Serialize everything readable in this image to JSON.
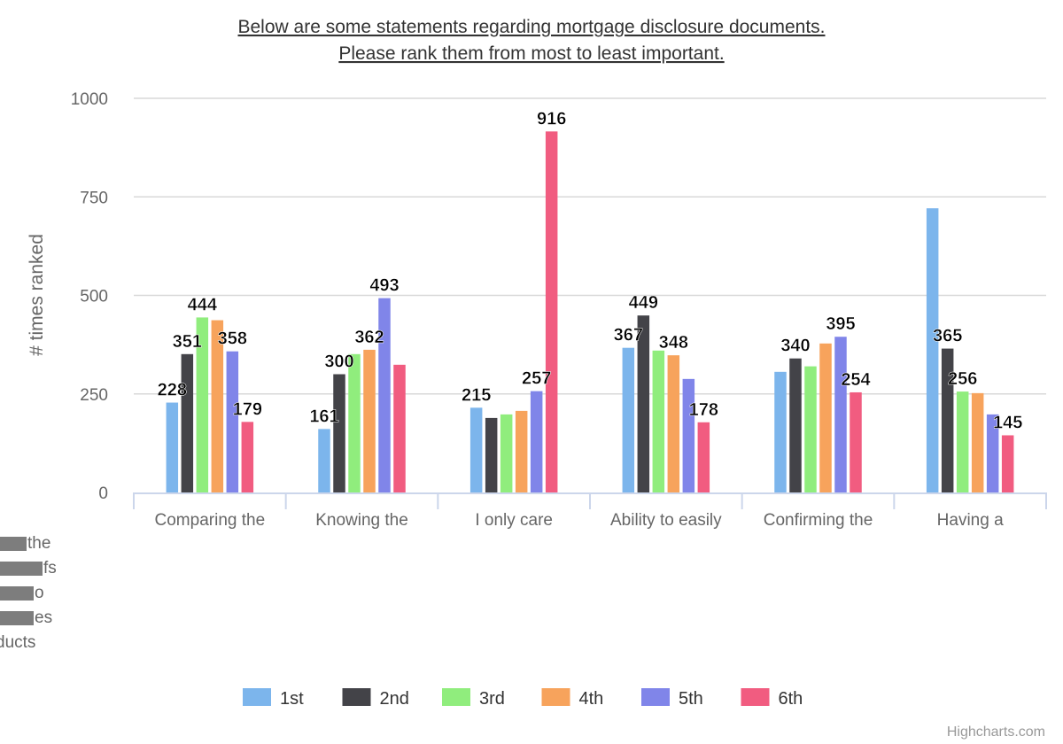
{
  "chart_data": {
    "type": "bar",
    "title_lines": [
      "Below are some statements regarding mortgage disclosure documents.",
      "Please rank them from most to least important."
    ],
    "ylabel": "# times ranked",
    "ylim": [
      0,
      1000
    ],
    "yticks": [
      0,
      250,
      500,
      750,
      1000
    ],
    "grid": true,
    "categories": [
      "Comparing the",
      "Knowing the",
      "I only care",
      "Ability to easily",
      "Confirming the",
      "Having a"
    ],
    "series": [
      {
        "name": "1st",
        "color": "#7cb5ec",
        "values": [
          228,
          161,
          215,
          367,
          306,
          721
        ],
        "labels": [
          "228",
          "161",
          "215",
          "367",
          "",
          ""
        ]
      },
      {
        "name": "2nd",
        "color": "#434348",
        "values": [
          351,
          300,
          189,
          449,
          340,
          365
        ],
        "labels": [
          "351",
          "300",
          "",
          "449",
          "340",
          "365"
        ]
      },
      {
        "name": "3rd",
        "color": "#90ed7d",
        "values": [
          444,
          351,
          198,
          360,
          320,
          256
        ],
        "labels": [
          "444",
          "",
          "",
          "",
          "",
          "256"
        ]
      },
      {
        "name": "4th",
        "color": "#f7a35c",
        "values": [
          437,
          362,
          207,
          348,
          378,
          252
        ],
        "labels": [
          "",
          "362",
          "",
          "348",
          "",
          ""
        ]
      },
      {
        "name": "5th",
        "color": "#8085e9",
        "values": [
          358,
          493,
          257,
          288,
          395,
          198
        ],
        "labels": [
          "358",
          "493",
          "257",
          "",
          "395",
          ""
        ]
      },
      {
        "name": "6th",
        "color": "#f15c80",
        "values": [
          179,
          324,
          916,
          178,
          254,
          145
        ],
        "labels": [
          "179",
          "",
          "916",
          "178",
          "254",
          "145"
        ]
      }
    ],
    "legend_position": "bottom-center",
    "credits": "Highcharts.com",
    "overflow_fragments": [
      "the",
      "fs",
      "o",
      "es",
      "ducts"
    ]
  }
}
